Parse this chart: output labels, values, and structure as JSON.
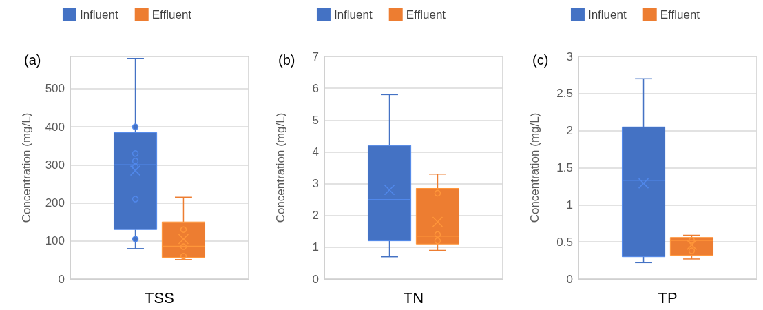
{
  "chart_data": [
    {
      "type": "box",
      "title": "(a)",
      "ylabel": "Concentration (mg/L)",
      "categories": [
        "TSS"
      ],
      "ylim": [
        0,
        585
      ],
      "yticks": [
        0,
        100,
        200,
        300,
        400,
        500
      ],
      "grid": "y",
      "legend": "top",
      "series": [
        {
          "name": "Influent",
          "color": "#4472c4",
          "boxes": [
            {
              "low": 80,
              "q1": 130,
              "median": 300,
              "q3": 385,
              "high": 580,
              "mean": 285,
              "outliers": [
                400,
                330,
                310,
                295,
                210,
                105
              ]
            }
          ]
        },
        {
          "name": "Effluent",
          "color": "#ed7d31",
          "boxes": [
            {
              "low": 51,
              "q1": 57,
              "median": 86,
              "q3": 150,
              "high": 215,
              "mean": 105,
              "outliers": [
                130,
                85,
                60
              ]
            }
          ]
        }
      ]
    },
    {
      "type": "box",
      "title": "(b)",
      "ylabel": "Concentration (mg/L)",
      "categories": [
        "TN"
      ],
      "ylim": [
        0,
        7
      ],
      "yticks": [
        0,
        1,
        2,
        3,
        4,
        5,
        6,
        7
      ],
      "grid": "y",
      "legend": "top",
      "series": [
        {
          "name": "Influent",
          "color": "#4472c4",
          "boxes": [
            {
              "low": 0.7,
              "q1": 1.2,
              "median": 2.5,
              "q3": 4.2,
              "high": 5.8,
              "mean": 2.8
            }
          ]
        },
        {
          "name": "Effluent",
          "color": "#ed7d31",
          "boxes": [
            {
              "low": 0.9,
              "q1": 1.1,
              "median": 1.35,
              "q3": 2.85,
              "high": 3.3,
              "mean": 1.8,
              "outliers": [
                2.7,
                1.4,
                1.2
              ]
            }
          ]
        }
      ]
    },
    {
      "type": "box",
      "title": "(c)",
      "ylabel": "Concentration (mg/L)",
      "categories": [
        "TP"
      ],
      "ylim": [
        0,
        3
      ],
      "yticks": [
        0,
        0.5,
        1,
        1.5,
        2,
        2.5,
        3
      ],
      "grid": "y",
      "legend": "top",
      "series": [
        {
          "name": "Influent",
          "color": "#4472c4",
          "boxes": [
            {
              "low": 0.22,
              "q1": 0.3,
              "median": 1.33,
              "q3": 2.05,
              "high": 2.7,
              "mean": 1.29
            }
          ]
        },
        {
          "name": "Effluent",
          "color": "#ed7d31",
          "boxes": [
            {
              "low": 0.27,
              "q1": 0.32,
              "median": 0.52,
              "q3": 0.56,
              "high": 0.59,
              "mean": 0.46,
              "outliers": [
                0.52,
                0.38
              ]
            }
          ]
        }
      ]
    }
  ]
}
